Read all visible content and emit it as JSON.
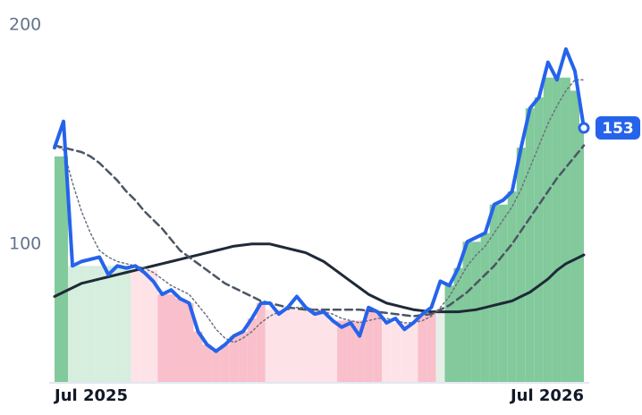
{
  "chart_data": {
    "type": "line",
    "x": [
      "Jul 2025",
      null,
      null,
      null,
      null,
      null,
      null,
      null,
      null,
      null,
      null,
      null,
      null,
      null,
      null,
      null,
      null,
      null,
      null,
      null,
      null,
      null,
      null,
      null,
      null,
      null,
      null,
      null,
      null,
      null,
      null,
      null,
      null,
      null,
      null,
      null,
      null,
      null,
      null,
      null,
      null,
      null,
      null,
      null,
      null,
      null,
      null,
      null,
      null,
      null,
      null,
      null,
      null,
      null,
      null,
      null,
      null,
      null,
      null,
      "Jul 2026"
    ],
    "ylim": [
      37,
      200
    ],
    "yticks": [
      100,
      200
    ],
    "band": {
      "values": [
        140,
        140,
        90,
        90,
        90,
        90,
        90,
        90,
        90,
        88,
        88,
        88,
        77,
        77,
        75,
        73,
        60,
        54,
        51,
        54,
        58,
        60,
        66,
        73,
        70,
        70,
        70,
        70,
        70,
        70,
        69,
        65,
        65,
        65,
        65,
        70,
        69,
        64,
        64,
        64,
        64,
        68,
        68,
        70,
        81,
        89,
        101,
        101,
        105,
        118,
        118,
        124,
        144,
        162,
        167,
        176,
        176,
        176,
        170,
        153
      ],
      "colors": [
        "#82c99b",
        "#82c99b",
        "#d5eedd",
        "#d5eedd",
        "#d5eedd",
        "#d5eedd",
        "#d5eedd",
        "#d5eedd",
        "#d5eedd",
        "#fde2e8",
        "#fde2e8",
        "#fde2e8",
        "#f9bfca",
        "#f9bfca",
        "#f9bfca",
        "#f9bfca",
        "#f9bfca",
        "#f9bfca",
        "#f9bfca",
        "#f9bfca",
        "#f9bfca",
        "#f9bfca",
        "#f9bfca",
        "#f9bfca",
        "#fde2e8",
        "#fde2e8",
        "#fde2e8",
        "#fde2e8",
        "#fde2e8",
        "#fde2e8",
        "#fde2e8",
        "#fde2e8",
        "#f9bfca",
        "#f9bfca",
        "#f9bfca",
        "#f9bfca",
        "#f9bfca",
        "#fde2e8",
        "#fde2e8",
        "#fde2e8",
        "#fde2e8",
        "#f9bfca",
        "#f9bfca",
        "#e5efe7",
        "#82c99b",
        "#82c99b",
        "#82c99b",
        "#82c99b",
        "#82c99b",
        "#82c99b",
        "#82c99b",
        "#82c99b",
        "#82c99b",
        "#82c99b",
        "#82c99b",
        "#82c99b",
        "#82c99b",
        "#82c99b",
        "#82c99b",
        "#82c99b"
      ]
    },
    "series": [
      {
        "color": "#2563eb",
        "style": "solid",
        "width": 4,
        "values": [
          144,
          156,
          90,
          92,
          93,
          94,
          86,
          90,
          89,
          90,
          87,
          83,
          77,
          79,
          75,
          73,
          60,
          54,
          51,
          54,
          58,
          60,
          66,
          73,
          73,
          68,
          71,
          76,
          71,
          68,
          69,
          65,
          62,
          64,
          58,
          71,
          69,
          64,
          66,
          61,
          64,
          68,
          71,
          83,
          81,
          89,
          101,
          103,
          105,
          118,
          120,
          124,
          144,
          162,
          167,
          183,
          175,
          189,
          179,
          153
        ]
      },
      {
        "color": "#6b7280",
        "style": "dotted",
        "width": 1.5,
        "values": [
          145,
          143,
          128,
          115,
          105,
          97,
          94,
          92,
          91,
          90,
          89,
          87,
          84,
          81,
          79,
          77,
          72,
          67,
          61,
          57,
          55,
          57,
          60,
          64,
          67,
          69,
          70,
          71,
          71,
          70,
          69,
          68,
          66,
          65,
          64,
          65,
          66,
          66,
          65,
          64,
          64,
          65,
          67,
          71,
          76,
          83,
          90,
          95,
          99,
          105,
          111,
          117,
          125,
          135,
          145,
          155,
          163,
          170,
          175,
          175
        ]
      },
      {
        "color": "#4b5563",
        "style": "dashed",
        "width": 2.5,
        "values": [
          145,
          144,
          143,
          142,
          140,
          137,
          133,
          129,
          124,
          120,
          115,
          111,
          107,
          102,
          97,
          94,
          91,
          88,
          85,
          82,
          80,
          78,
          76,
          74,
          73,
          72,
          71,
          70.5,
          70,
          70,
          70,
          70,
          70,
          70,
          70,
          69.5,
          69,
          68.5,
          68,
          67.5,
          67,
          67.5,
          68,
          70,
          72,
          75,
          78,
          82,
          86,
          90,
          95,
          100,
          106,
          112,
          118,
          124,
          130,
          135,
          140,
          145
        ]
      },
      {
        "color": "#1f2937",
        "style": "solid",
        "width": 3,
        "values": [
          76,
          78,
          80,
          82,
          83,
          84,
          85,
          86,
          87,
          88,
          89,
          90,
          91,
          92,
          93,
          94,
          95,
          96,
          97,
          98,
          99,
          99.5,
          100,
          100,
          100,
          99,
          98,
          97,
          96,
          94,
          92,
          89,
          86,
          83,
          80,
          77,
          75,
          73,
          72,
          71,
          70,
          69.5,
          69,
          69,
          69,
          69,
          69.5,
          70,
          71,
          72,
          73,
          74,
          76,
          78,
          81,
          84,
          88,
          91,
          93,
          95
        ]
      }
    ],
    "end_label_color": "#2563eb"
  }
}
